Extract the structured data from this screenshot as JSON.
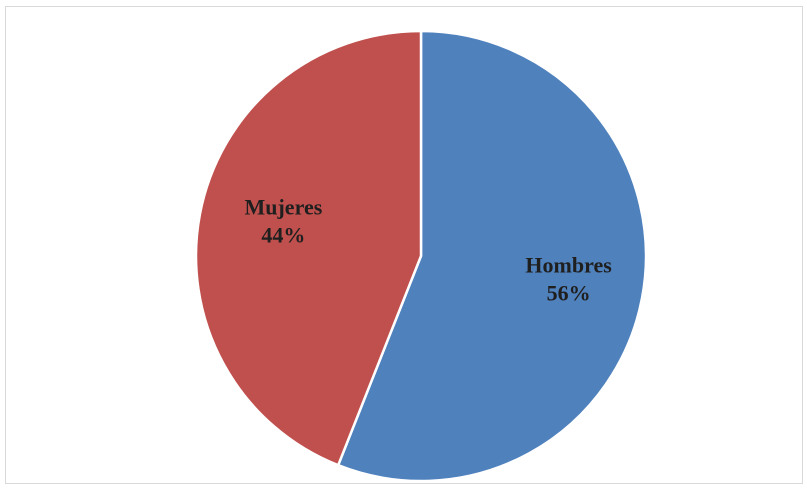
{
  "chart_data": {
    "type": "pie",
    "title": "",
    "slices": [
      {
        "label": "Hombres",
        "value": 56,
        "percent_label": "56%",
        "color": "#4f81bd"
      },
      {
        "label": "Mujeres",
        "value": 44,
        "percent_label": "44%",
        "color": "#c0504d"
      }
    ],
    "start_angle": "12 o'clock",
    "direction": "clockwise",
    "legend": "none",
    "data_labels": "inside"
  }
}
